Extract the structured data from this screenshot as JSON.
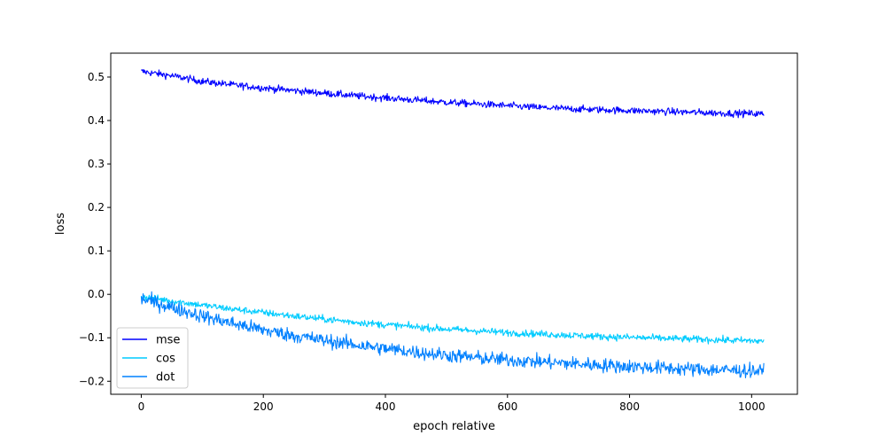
{
  "chart_data": {
    "type": "line",
    "title": "",
    "xlabel": "epoch relative",
    "ylabel": "loss",
    "xlim": [
      -50,
      1075
    ],
    "ylim": [
      -0.23,
      0.555
    ],
    "xticks": [
      0,
      200,
      400,
      600,
      800,
      1000
    ],
    "yticks": [
      -0.2,
      -0.1,
      0.0,
      0.1,
      0.2,
      0.3,
      0.4,
      0.5
    ],
    "xtick_labels": [
      "0",
      "200",
      "400",
      "600",
      "800",
      "1000"
    ],
    "ytick_labels": [
      "−0.2",
      "−0.1",
      "0.0",
      "0.1",
      "0.2",
      "0.3",
      "0.4",
      "0.5"
    ],
    "grid": false,
    "legend_position": "lower-left",
    "series": [
      {
        "name": "mse",
        "color": "#0000ff",
        "x": [
          0,
          50,
          100,
          150,
          200,
          250,
          300,
          350,
          400,
          450,
          500,
          550,
          600,
          650,
          700,
          750,
          800,
          850,
          900,
          950,
          1000,
          1020
        ],
        "y": [
          0.513,
          0.503,
          0.49,
          0.482,
          0.475,
          0.469,
          0.463,
          0.457,
          0.452,
          0.447,
          0.442,
          0.438,
          0.434,
          0.43,
          0.427,
          0.425,
          0.423,
          0.421,
          0.419,
          0.417,
          0.416,
          0.415
        ],
        "noise": 0.004
      },
      {
        "name": "cos",
        "color": "#00ccff",
        "x": [
          0,
          50,
          100,
          150,
          200,
          250,
          300,
          350,
          400,
          450,
          500,
          550,
          600,
          650,
          700,
          750,
          800,
          850,
          900,
          950,
          1000,
          1020
        ],
        "y": [
          -0.005,
          -0.015,
          -0.025,
          -0.034,
          -0.042,
          -0.05,
          -0.057,
          -0.064,
          -0.07,
          -0.075,
          -0.08,
          -0.084,
          -0.088,
          -0.091,
          -0.094,
          -0.097,
          -0.099,
          -0.101,
          -0.103,
          -0.105,
          -0.107,
          -0.108
        ],
        "noise": 0.004
      },
      {
        "name": "dot",
        "color": "#0080ff",
        "x": [
          0,
          50,
          100,
          150,
          200,
          250,
          300,
          350,
          400,
          450,
          500,
          550,
          600,
          650,
          700,
          750,
          800,
          850,
          900,
          950,
          1000,
          1020
        ],
        "y": [
          -0.01,
          -0.03,
          -0.05,
          -0.067,
          -0.082,
          -0.095,
          -0.106,
          -0.116,
          -0.125,
          -0.133,
          -0.14,
          -0.146,
          -0.151,
          -0.155,
          -0.159,
          -0.163,
          -0.166,
          -0.169,
          -0.172,
          -0.174,
          -0.176,
          -0.177
        ],
        "noise": 0.008
      }
    ]
  }
}
